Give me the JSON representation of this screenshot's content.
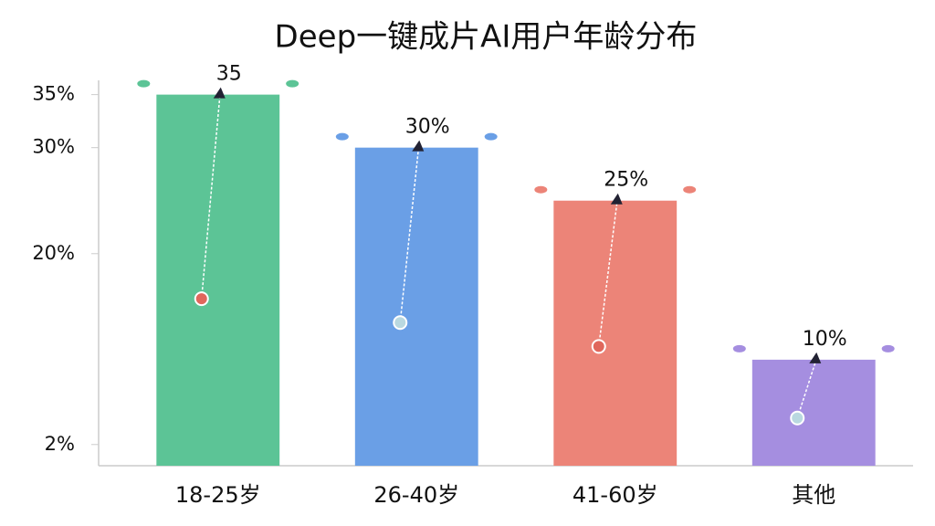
{
  "chart_data": {
    "type": "bar",
    "title": "Deep一键成片AI用户年龄分布",
    "categories": [
      "18-25岁",
      "26-40岁",
      "41-60岁",
      "其他"
    ],
    "values": [
      35,
      30,
      25,
      10
    ],
    "value_labels": [
      "35",
      "30%",
      "25%",
      "10%"
    ],
    "colors": [
      "#5cc496",
      "#6a9fe6",
      "#ec8478",
      "#a58ee0"
    ],
    "ylim": [
      0,
      36
    ],
    "yticks": [
      {
        "value": 2,
        "label": "2%"
      },
      {
        "value": 20,
        "label": "20%"
      },
      {
        "value": 30,
        "label": "30%"
      },
      {
        "value": 35,
        "label": "35%"
      }
    ]
  }
}
